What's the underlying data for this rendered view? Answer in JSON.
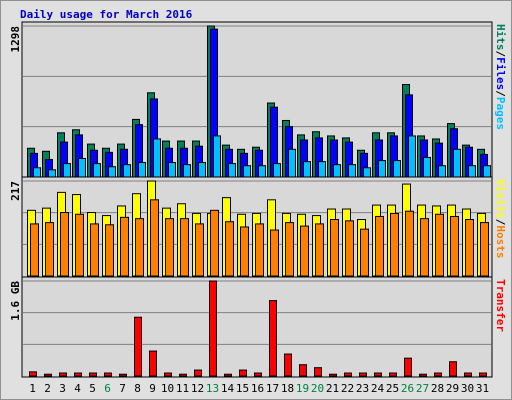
{
  "title": "Daily usage for March 2016",
  "categories": [
    "1",
    "2",
    "3",
    "4",
    "5",
    "6",
    "7",
    "8",
    "9",
    "10",
    "11",
    "12",
    "13",
    "14",
    "15",
    "16",
    "17",
    "18",
    "19",
    "20",
    "21",
    "22",
    "23",
    "24",
    "25",
    "26",
    "27",
    "28",
    "29",
    "30",
    "31"
  ],
  "category_colors": [
    "#000000",
    "#000000",
    "#000000",
    "#000000",
    "#000000",
    "#008040",
    "#000000",
    "#000000",
    "#000000",
    "#000000",
    "#000000",
    "#000000",
    "#008040",
    "#000000",
    "#000000",
    "#000000",
    "#000000",
    "#000000",
    "#008040",
    "#008040",
    "#000000",
    "#000000",
    "#000000",
    "#000000",
    "#000000",
    "#008040",
    "#008040",
    "#000000",
    "#000000",
    "#000000",
    "#000000"
  ],
  "chart_data": [
    {
      "type": "bar",
      "ylim": [
        0,
        1298
      ],
      "yticks": [
        1298
      ],
      "grid": true,
      "series": [
        {
          "name": "Hits",
          "color": "#00805c",
          "values": [
            247,
            221,
            380,
            406,
            283,
            247,
            283,
            495,
            724,
            309,
            309,
            309,
            1298,
            274,
            238,
            256,
            636,
            486,
            362,
            389,
            353,
            336,
            230,
            380,
            380,
            795,
            353,
            327,
            459,
            274,
            238
          ]
        },
        {
          "name": "Files",
          "color": "#0000ff",
          "values": [
            203,
            150,
            300,
            362,
            230,
            212,
            238,
            450,
            671,
            247,
            247,
            265,
            1271,
            238,
            203,
            230,
            600,
            433,
            318,
            336,
            318,
            300,
            203,
            318,
            353,
            706,
            318,
            291,
            415,
            256,
            194
          ]
        },
        {
          "name": "Pages",
          "color": "#00c0ff",
          "values": [
            79,
            62,
            115,
            159,
            115,
            88,
            106,
            124,
            327,
            124,
            106,
            124,
            353,
            115,
            97,
            97,
            115,
            238,
            132,
            132,
            106,
            106,
            79,
            141,
            141,
            353,
            168,
            97,
            238,
            97,
            97
          ]
        }
      ]
    },
    {
      "type": "bar",
      "ylim": [
        0,
        217
      ],
      "yticks": [
        217
      ],
      "grid": true,
      "series": [
        {
          "name": "Visits",
          "color": "#ffff00",
          "values": [
            150,
            155,
            191,
            186,
            145,
            138,
            160,
            188,
            217,
            155,
            165,
            143,
            143,
            179,
            141,
            143,
            174,
            143,
            141,
            138,
            153,
            153,
            129,
            162,
            162,
            210,
            162,
            160,
            162,
            153,
            143
          ]
        },
        {
          "name": "Hosts",
          "color": "#ff8000",
          "values": [
            119,
            122,
            145,
            141,
            119,
            117,
            134,
            131,
            174,
            131,
            131,
            119,
            150,
            124,
            112,
            119,
            105,
            122,
            114,
            119,
            129,
            126,
            107,
            136,
            143,
            148,
            131,
            141,
            136,
            129,
            122
          ]
        }
      ]
    },
    {
      "type": "bar",
      "ylim": [
        0,
        1.6
      ],
      "yticks": [
        {
          "value": 1.6,
          "label": "1.6 GB"
        }
      ],
      "grid": true,
      "series": [
        {
          "name": "Transfer",
          "color": "#ff0000",
          "values": [
            0.07,
            0.03,
            0.05,
            0.05,
            0.05,
            0.05,
            0.03,
            0.99,
            0.42,
            0.05,
            0.03,
            0.1,
            1.6,
            0.03,
            0.1,
            0.05,
            1.27,
            0.37,
            0.19,
            0.14,
            0.03,
            0.05,
            0.05,
            0.05,
            0.05,
            0.3,
            0.03,
            0.05,
            0.24,
            0.05,
            0.05
          ]
        }
      ]
    }
  ]
}
